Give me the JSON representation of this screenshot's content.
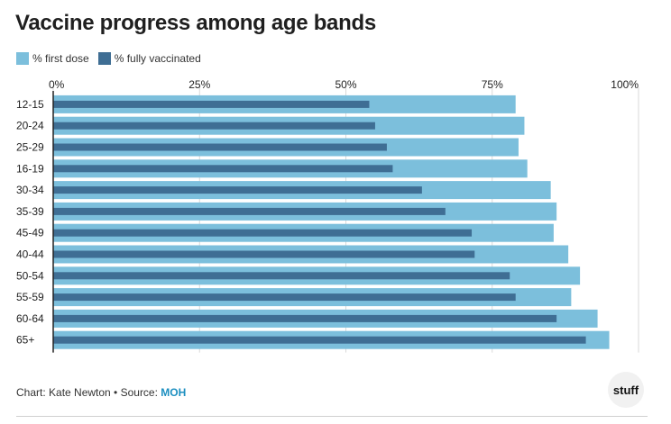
{
  "colors": {
    "first_dose": "#7cbfdc",
    "fully_vaccinated": "#3f6e94",
    "grid": "#d9d9d9",
    "axis": "#222222"
  },
  "chart_data": {
    "type": "bar",
    "orientation": "horizontal",
    "title": "Vaccine progress among age bands",
    "categories": [
      "12-15",
      "20-24",
      "25-29",
      "16-19",
      "30-34",
      "35-39",
      "45-49",
      "40-44",
      "50-54",
      "55-59",
      "60-64",
      "65+"
    ],
    "series": [
      {
        "name": "% first dose",
        "values": [
          79,
          80.5,
          79.5,
          81,
          85,
          86,
          85.5,
          88,
          90,
          88.5,
          93,
          95
        ]
      },
      {
        "name": "% fully vaccinated",
        "values": [
          54,
          55,
          57,
          58,
          63,
          67,
          71.5,
          72,
          78,
          79,
          86,
          91
        ]
      }
    ],
    "xlim": [
      0,
      100
    ],
    "xticks": [
      "0%",
      "25%",
      "50%",
      "75%",
      "100%"
    ],
    "xtick_values": [
      0,
      25,
      50,
      75,
      100
    ],
    "legend_position": "top-left"
  },
  "footer": {
    "credit": "Chart: Kate Newton • Source: ",
    "source": "MOH"
  },
  "logo": {
    "text": "stuff"
  }
}
